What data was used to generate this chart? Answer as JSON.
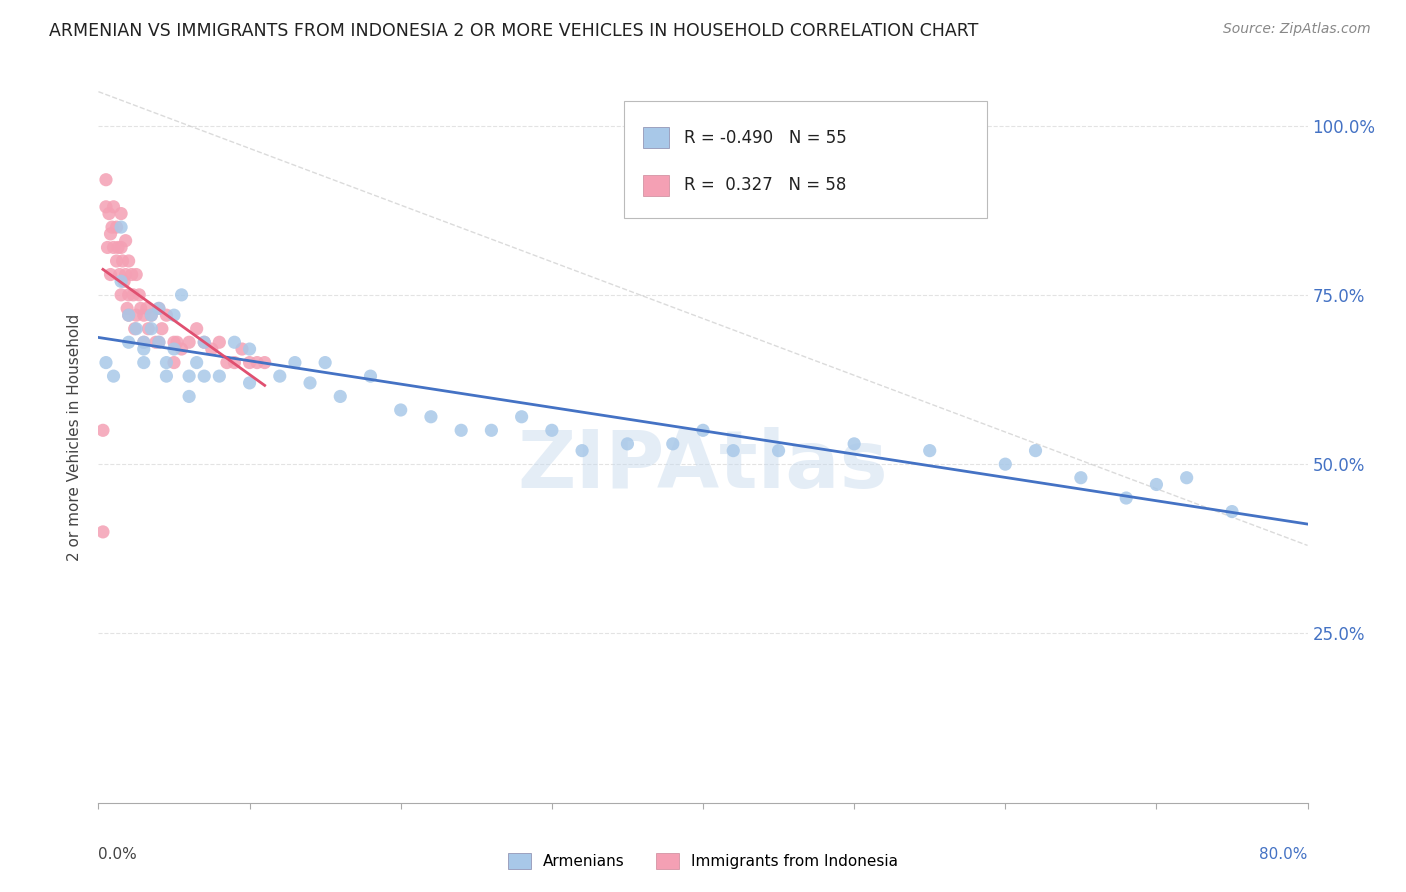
{
  "title": "ARMENIAN VS IMMIGRANTS FROM INDONESIA 2 OR MORE VEHICLES IN HOUSEHOLD CORRELATION CHART",
  "source": "Source: ZipAtlas.com",
  "ylabel": "2 or more Vehicles in Household",
  "legend_armenians": "Armenians",
  "legend_indonesia": "Immigrants from Indonesia",
  "R_armenians": -0.49,
  "N_armenians": 55,
  "R_indonesia": 0.327,
  "N_indonesia": 58,
  "color_armenians": "#a8c8e8",
  "color_indonesia": "#f4a0b4",
  "color_line_armenians": "#4472c4",
  "color_line_indonesia": "#e05070",
  "watermark": "ZIPAtlas",
  "armenians_x": [
    0.005,
    0.01,
    0.015,
    0.015,
    0.02,
    0.02,
    0.025,
    0.03,
    0.03,
    0.03,
    0.035,
    0.035,
    0.04,
    0.04,
    0.045,
    0.045,
    0.05,
    0.05,
    0.055,
    0.06,
    0.06,
    0.065,
    0.07,
    0.07,
    0.08,
    0.09,
    0.1,
    0.1,
    0.12,
    0.13,
    0.14,
    0.15,
    0.16,
    0.18,
    0.2,
    0.22,
    0.24,
    0.26,
    0.28,
    0.3,
    0.32,
    0.35,
    0.38,
    0.4,
    0.42,
    0.45,
    0.5,
    0.55,
    0.6,
    0.62,
    0.65,
    0.68,
    0.7,
    0.72,
    0.75
  ],
  "armenians_y": [
    0.65,
    0.63,
    0.85,
    0.77,
    0.68,
    0.72,
    0.7,
    0.68,
    0.65,
    0.67,
    0.7,
    0.72,
    0.68,
    0.73,
    0.63,
    0.65,
    0.67,
    0.72,
    0.75,
    0.63,
    0.6,
    0.65,
    0.63,
    0.68,
    0.63,
    0.68,
    0.62,
    0.67,
    0.63,
    0.65,
    0.62,
    0.65,
    0.6,
    0.63,
    0.58,
    0.57,
    0.55,
    0.55,
    0.57,
    0.55,
    0.52,
    0.53,
    0.53,
    0.55,
    0.52,
    0.52,
    0.53,
    0.52,
    0.5,
    0.52,
    0.48,
    0.45,
    0.47,
    0.48,
    0.43
  ],
  "indonesia_x": [
    0.003,
    0.003,
    0.005,
    0.005,
    0.006,
    0.007,
    0.008,
    0.008,
    0.009,
    0.01,
    0.01,
    0.012,
    0.012,
    0.013,
    0.014,
    0.015,
    0.015,
    0.015,
    0.016,
    0.017,
    0.018,
    0.018,
    0.019,
    0.02,
    0.02,
    0.02,
    0.022,
    0.023,
    0.024,
    0.025,
    0.025,
    0.027,
    0.028,
    0.03,
    0.03,
    0.032,
    0.033,
    0.035,
    0.038,
    0.04,
    0.04,
    0.042,
    0.045,
    0.05,
    0.05,
    0.052,
    0.055,
    0.06,
    0.065,
    0.07,
    0.075,
    0.08,
    0.085,
    0.09,
    0.095,
    0.1,
    0.105,
    0.11
  ],
  "indonesia_y": [
    0.55,
    0.4,
    0.92,
    0.88,
    0.82,
    0.87,
    0.84,
    0.78,
    0.85,
    0.88,
    0.82,
    0.85,
    0.8,
    0.82,
    0.78,
    0.87,
    0.82,
    0.75,
    0.8,
    0.77,
    0.83,
    0.78,
    0.73,
    0.8,
    0.75,
    0.72,
    0.78,
    0.75,
    0.7,
    0.78,
    0.72,
    0.75,
    0.73,
    0.72,
    0.68,
    0.73,
    0.7,
    0.72,
    0.68,
    0.73,
    0.68,
    0.7,
    0.72,
    0.68,
    0.65,
    0.68,
    0.67,
    0.68,
    0.7,
    0.68,
    0.67,
    0.68,
    0.65,
    0.65,
    0.67,
    0.65,
    0.65,
    0.65
  ],
  "xlim": [
    0.0,
    0.8
  ],
  "ylim": [
    0.0,
    1.08
  ],
  "yticks": [
    0.25,
    0.5,
    0.75,
    1.0
  ],
  "ytick_labels": [
    "25.0%",
    "50.0%",
    "75.0%",
    "100.0%"
  ],
  "background_color": "#ffffff",
  "grid_color": "#dddddd"
}
